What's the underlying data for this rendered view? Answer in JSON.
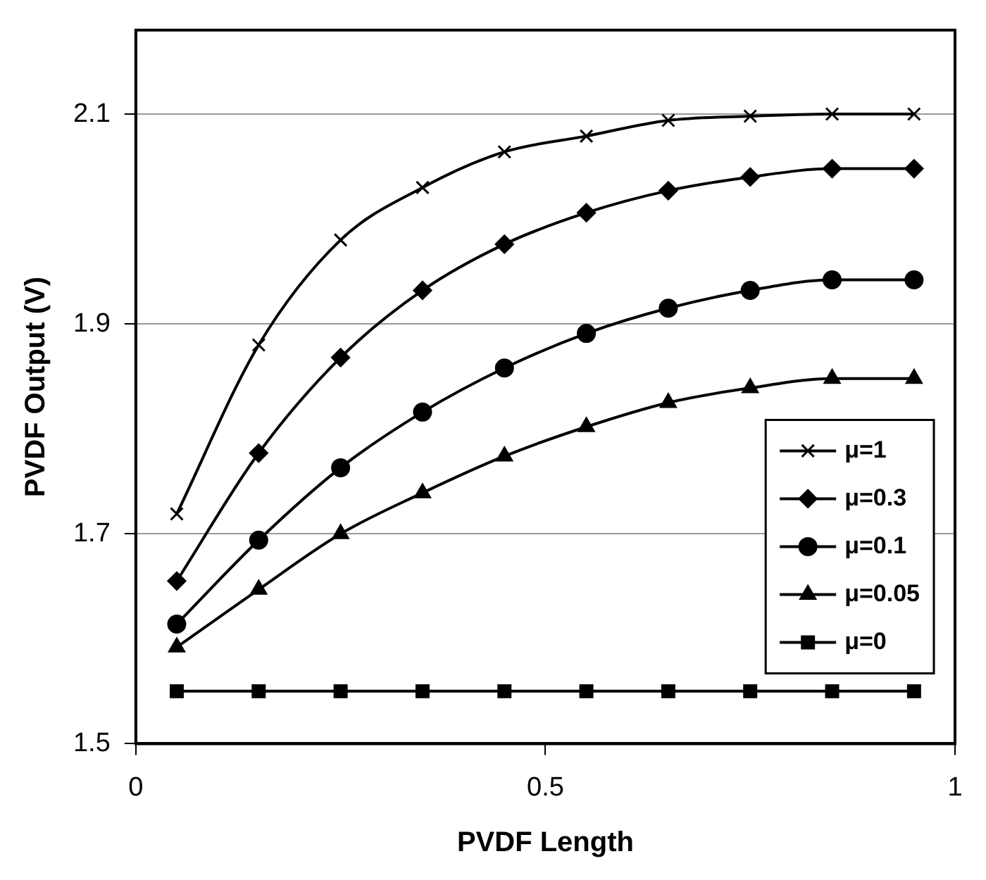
{
  "chart_data": {
    "type": "line",
    "xlabel": "PVDF Length",
    "ylabel": "PVDF Output (V)",
    "x": [
      0.05,
      0.15,
      0.25,
      0.35,
      0.45,
      0.55,
      0.65,
      0.75,
      0.85,
      0.95
    ],
    "series": [
      {
        "name": "μ=1",
        "color": "#000000",
        "marker": "cross",
        "values": [
          1.719,
          1.88,
          1.98,
          2.03,
          2.064,
          2.079,
          2.094,
          2.098,
          2.1,
          2.1
        ]
      },
      {
        "name": "μ=0.3",
        "color": "#000000",
        "marker": "diamond",
        "values": [
          1.655,
          1.777,
          1.868,
          1.932,
          1.976,
          2.006,
          2.027,
          2.04,
          2.048,
          2.048
        ]
      },
      {
        "name": "μ=0.1",
        "color": "#000000",
        "marker": "circle",
        "values": [
          1.614,
          1.694,
          1.763,
          1.816,
          1.858,
          1.891,
          1.915,
          1.932,
          1.942,
          1.942
        ]
      },
      {
        "name": "μ=0.05",
        "color": "#000000",
        "marker": "triangle",
        "values": [
          1.592,
          1.647,
          1.7,
          1.739,
          1.774,
          1.802,
          1.825,
          1.839,
          1.848,
          1.848
        ]
      },
      {
        "name": "μ=0",
        "color": "#000000",
        "marker": "square",
        "values": [
          1.55,
          1.55,
          1.55,
          1.55,
          1.55,
          1.55,
          1.55,
          1.55,
          1.55,
          1.55
        ]
      }
    ],
    "xlim": [
      0,
      1
    ],
    "xticks": [
      0,
      0.5,
      1
    ],
    "ylim": [
      1.5,
      2.18
    ],
    "yticks": [
      1.5,
      1.7,
      1.9,
      2.1
    ],
    "grid": "y",
    "legend": "bottom right",
    "line_style": "solid"
  }
}
